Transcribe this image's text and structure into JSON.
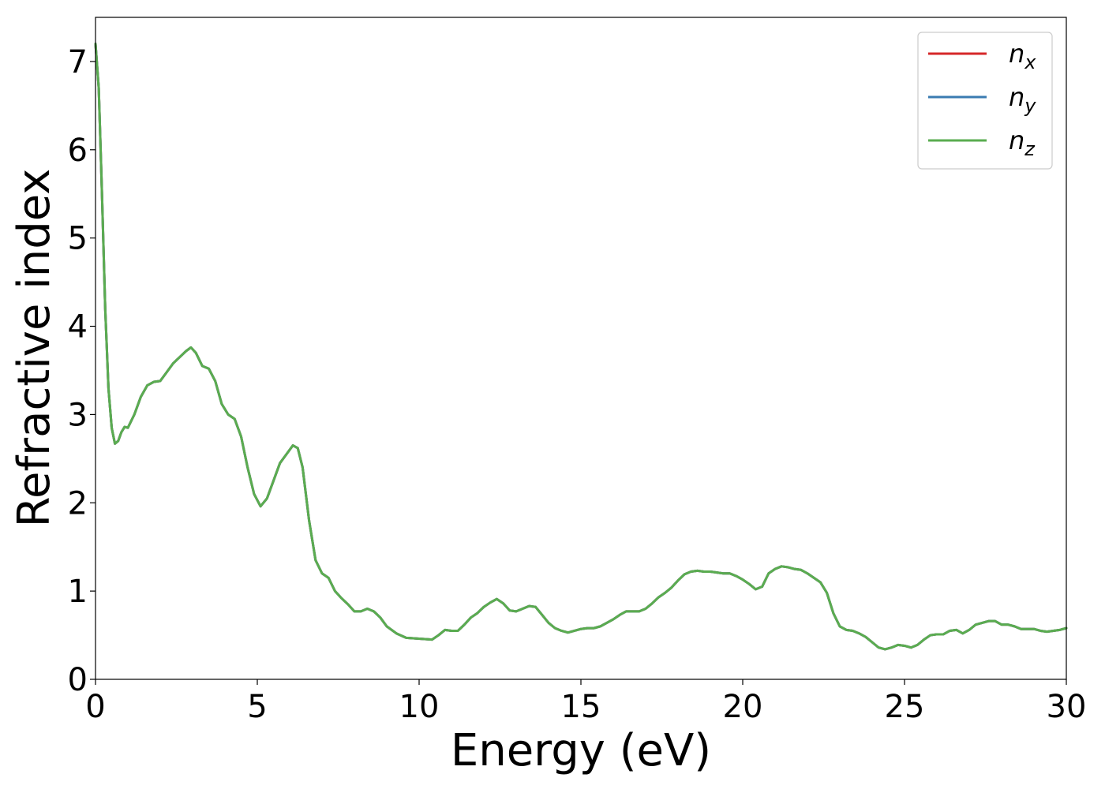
{
  "chart_data": {
    "type": "line",
    "title": "",
    "xlabel": "Energy (eV)",
    "ylabel": "Refractive index",
    "xlim": [
      0,
      30
    ],
    "ylim": [
      0,
      7.5
    ],
    "xticks": [
      0,
      5,
      10,
      15,
      20,
      25,
      30
    ],
    "yticks": [
      0,
      1,
      2,
      3,
      4,
      5,
      6,
      7
    ],
    "grid": false,
    "legend_position": "top-right",
    "series": [
      {
        "name": "n_x",
        "label_base": "n",
        "label_sub": "x",
        "color": "#d62728",
        "x": [
          0,
          0.1,
          0.2,
          0.3,
          0.4,
          0.5,
          0.6,
          0.7,
          0.8,
          0.9,
          1.0,
          1.2,
          1.4,
          1.6,
          1.8,
          2.0,
          2.2,
          2.4,
          2.6,
          2.8,
          2.95,
          3.1,
          3.3,
          3.5,
          3.7,
          3.9,
          4.1,
          4.3,
          4.5,
          4.7,
          4.9,
          5.1,
          5.3,
          5.5,
          5.7,
          5.9,
          6.1,
          6.25,
          6.4,
          6.6,
          6.8,
          7.0,
          7.2,
          7.4,
          7.6,
          7.8,
          8.0,
          8.2,
          8.4,
          8.6,
          8.8,
          9.0,
          9.3,
          9.6,
          10.0,
          10.4,
          10.6,
          10.8,
          11.0,
          11.2,
          11.4,
          11.6,
          11.8,
          12.0,
          12.2,
          12.4,
          12.6,
          12.8,
          13.0,
          13.2,
          13.4,
          13.6,
          13.8,
          14.0,
          14.2,
          14.4,
          14.6,
          14.8,
          15.0,
          15.2,
          15.4,
          15.6,
          15.8,
          16.0,
          16.2,
          16.4,
          16.6,
          16.8,
          17.0,
          17.2,
          17.4,
          17.6,
          17.8,
          18.0,
          18.2,
          18.4,
          18.6,
          18.8,
          19.0,
          19.2,
          19.4,
          19.6,
          19.8,
          20.0,
          20.2,
          20.4,
          20.6,
          20.8,
          21.0,
          21.2,
          21.4,
          21.6,
          21.8,
          22.0,
          22.2,
          22.4,
          22.6,
          22.8,
          23.0,
          23.2,
          23.4,
          23.6,
          23.8,
          24.0,
          24.2,
          24.4,
          24.6,
          24.8,
          25.0,
          25.2,
          25.4,
          25.6,
          25.8,
          26.0,
          26.2,
          26.4,
          26.6,
          26.8,
          27.0,
          27.2,
          27.4,
          27.6,
          27.8,
          28.0,
          28.2,
          28.4,
          28.6,
          28.8,
          29.0,
          29.2,
          29.4,
          29.6,
          29.8,
          30.0
        ],
        "y": [
          7.2,
          6.7,
          5.5,
          4.2,
          3.3,
          2.85,
          2.67,
          2.7,
          2.8,
          2.86,
          2.85,
          3.0,
          3.2,
          3.33,
          3.37,
          3.38,
          3.48,
          3.58,
          3.65,
          3.72,
          3.76,
          3.7,
          3.55,
          3.52,
          3.38,
          3.12,
          3.0,
          2.95,
          2.75,
          2.4,
          2.1,
          1.96,
          2.05,
          2.25,
          2.45,
          2.55,
          2.65,
          2.62,
          2.4,
          1.8,
          1.35,
          1.2,
          1.15,
          1.0,
          0.92,
          0.85,
          0.77,
          0.77,
          0.8,
          0.77,
          0.7,
          0.6,
          0.52,
          0.47,
          0.46,
          0.45,
          0.5,
          0.56,
          0.55,
          0.55,
          0.62,
          0.7,
          0.75,
          0.82,
          0.87,
          0.91,
          0.86,
          0.78,
          0.77,
          0.8,
          0.83,
          0.82,
          0.73,
          0.64,
          0.58,
          0.55,
          0.53,
          0.55,
          0.57,
          0.58,
          0.58,
          0.6,
          0.64,
          0.68,
          0.73,
          0.77,
          0.77,
          0.77,
          0.8,
          0.86,
          0.93,
          0.98,
          1.04,
          1.12,
          1.19,
          1.22,
          1.23,
          1.22,
          1.22,
          1.21,
          1.2,
          1.2,
          1.17,
          1.13,
          1.08,
          1.02,
          1.05,
          1.2,
          1.25,
          1.28,
          1.27,
          1.25,
          1.24,
          1.2,
          1.15,
          1.1,
          0.98,
          0.75,
          0.6,
          0.56,
          0.55,
          0.52,
          0.48,
          0.42,
          0.36,
          0.34,
          0.36,
          0.39,
          0.38,
          0.36,
          0.39,
          0.45,
          0.5,
          0.51,
          0.51,
          0.55,
          0.56,
          0.52,
          0.56,
          0.62,
          0.64,
          0.66,
          0.66,
          0.62,
          0.62,
          0.6,
          0.57,
          0.57,
          0.57,
          0.55,
          0.54,
          0.55,
          0.56,
          0.58
        ]
      },
      {
        "name": "n_y",
        "label_base": "n",
        "label_sub": "y",
        "color": "#3a7bb1",
        "x": [
          0,
          0.1,
          0.2,
          0.3,
          0.4,
          0.5,
          0.6,
          0.7,
          0.8,
          0.9,
          1.0,
          1.2,
          1.4,
          1.6,
          1.8,
          2.0,
          2.2,
          2.4,
          2.6,
          2.8,
          2.95,
          3.1,
          3.3,
          3.5,
          3.7,
          3.9,
          4.1,
          4.3,
          4.5,
          4.7,
          4.9,
          5.1,
          5.3,
          5.5,
          5.7,
          5.9,
          6.1,
          6.25,
          6.4,
          6.6,
          6.8,
          7.0,
          7.2,
          7.4,
          7.6,
          7.8,
          8.0,
          8.2,
          8.4,
          8.6,
          8.8,
          9.0,
          9.3,
          9.6,
          10.0,
          10.4,
          10.6,
          10.8,
          11.0,
          11.2,
          11.4,
          11.6,
          11.8,
          12.0,
          12.2,
          12.4,
          12.6,
          12.8,
          13.0,
          13.2,
          13.4,
          13.6,
          13.8,
          14.0,
          14.2,
          14.4,
          14.6,
          14.8,
          15.0,
          15.2,
          15.4,
          15.6,
          15.8,
          16.0,
          16.2,
          16.4,
          16.6,
          16.8,
          17.0,
          17.2,
          17.4,
          17.6,
          17.8,
          18.0,
          18.2,
          18.4,
          18.6,
          18.8,
          19.0,
          19.2,
          19.4,
          19.6,
          19.8,
          20.0,
          20.2,
          20.4,
          20.6,
          20.8,
          21.0,
          21.2,
          21.4,
          21.6,
          21.8,
          22.0,
          22.2,
          22.4,
          22.6,
          22.8,
          23.0,
          23.2,
          23.4,
          23.6,
          23.8,
          24.0,
          24.2,
          24.4,
          24.6,
          24.8,
          25.0,
          25.2,
          25.4,
          25.6,
          25.8,
          26.0,
          26.2,
          26.4,
          26.6,
          26.8,
          27.0,
          27.2,
          27.4,
          27.6,
          27.8,
          28.0,
          28.2,
          28.4,
          28.6,
          28.8,
          29.0,
          29.2,
          29.4,
          29.6,
          29.8,
          30.0
        ],
        "y": [
          7.2,
          6.7,
          5.5,
          4.2,
          3.3,
          2.85,
          2.67,
          2.7,
          2.8,
          2.86,
          2.85,
          3.0,
          3.2,
          3.33,
          3.37,
          3.38,
          3.48,
          3.58,
          3.65,
          3.72,
          3.76,
          3.7,
          3.55,
          3.52,
          3.38,
          3.12,
          3.0,
          2.95,
          2.75,
          2.4,
          2.1,
          1.96,
          2.05,
          2.25,
          2.45,
          2.55,
          2.65,
          2.62,
          2.4,
          1.8,
          1.35,
          1.2,
          1.15,
          1.0,
          0.92,
          0.85,
          0.77,
          0.77,
          0.8,
          0.77,
          0.7,
          0.6,
          0.52,
          0.47,
          0.46,
          0.45,
          0.5,
          0.56,
          0.55,
          0.55,
          0.62,
          0.7,
          0.75,
          0.82,
          0.87,
          0.91,
          0.86,
          0.78,
          0.77,
          0.8,
          0.83,
          0.82,
          0.73,
          0.64,
          0.58,
          0.55,
          0.53,
          0.55,
          0.57,
          0.58,
          0.58,
          0.6,
          0.64,
          0.68,
          0.73,
          0.77,
          0.77,
          0.77,
          0.8,
          0.86,
          0.93,
          0.98,
          1.04,
          1.12,
          1.19,
          1.22,
          1.23,
          1.22,
          1.22,
          1.21,
          1.2,
          1.2,
          1.17,
          1.13,
          1.08,
          1.02,
          1.05,
          1.2,
          1.25,
          1.28,
          1.27,
          1.25,
          1.24,
          1.2,
          1.15,
          1.1,
          0.98,
          0.75,
          0.6,
          0.56,
          0.55,
          0.52,
          0.48,
          0.42,
          0.36,
          0.34,
          0.36,
          0.39,
          0.38,
          0.36,
          0.39,
          0.45,
          0.5,
          0.51,
          0.51,
          0.55,
          0.56,
          0.52,
          0.56,
          0.62,
          0.64,
          0.66,
          0.66,
          0.62,
          0.62,
          0.6,
          0.57,
          0.57,
          0.57,
          0.55,
          0.54,
          0.55,
          0.56,
          0.58
        ]
      },
      {
        "name": "n_z",
        "label_base": "n",
        "label_sub": "z",
        "color": "#5aac50",
        "x": [
          0,
          0.1,
          0.2,
          0.3,
          0.4,
          0.5,
          0.6,
          0.7,
          0.8,
          0.9,
          1.0,
          1.2,
          1.4,
          1.6,
          1.8,
          2.0,
          2.2,
          2.4,
          2.6,
          2.8,
          2.95,
          3.1,
          3.3,
          3.5,
          3.7,
          3.9,
          4.1,
          4.3,
          4.5,
          4.7,
          4.9,
          5.1,
          5.3,
          5.5,
          5.7,
          5.9,
          6.1,
          6.25,
          6.4,
          6.6,
          6.8,
          7.0,
          7.2,
          7.4,
          7.6,
          7.8,
          8.0,
          8.2,
          8.4,
          8.6,
          8.8,
          9.0,
          9.3,
          9.6,
          10.0,
          10.4,
          10.6,
          10.8,
          11.0,
          11.2,
          11.4,
          11.6,
          11.8,
          12.0,
          12.2,
          12.4,
          12.6,
          12.8,
          13.0,
          13.2,
          13.4,
          13.6,
          13.8,
          14.0,
          14.2,
          14.4,
          14.6,
          14.8,
          15.0,
          15.2,
          15.4,
          15.6,
          15.8,
          16.0,
          16.2,
          16.4,
          16.6,
          16.8,
          17.0,
          17.2,
          17.4,
          17.6,
          17.8,
          18.0,
          18.2,
          18.4,
          18.6,
          18.8,
          19.0,
          19.2,
          19.4,
          19.6,
          19.8,
          20.0,
          20.2,
          20.4,
          20.6,
          20.8,
          21.0,
          21.2,
          21.4,
          21.6,
          21.8,
          22.0,
          22.2,
          22.4,
          22.6,
          22.8,
          23.0,
          23.2,
          23.4,
          23.6,
          23.8,
          24.0,
          24.2,
          24.4,
          24.6,
          24.8,
          25.0,
          25.2,
          25.4,
          25.6,
          25.8,
          26.0,
          26.2,
          26.4,
          26.6,
          26.8,
          27.0,
          27.2,
          27.4,
          27.6,
          27.8,
          28.0,
          28.2,
          28.4,
          28.6,
          28.8,
          29.0,
          29.2,
          29.4,
          29.6,
          29.8,
          30.0
        ],
        "y": [
          7.2,
          6.7,
          5.5,
          4.2,
          3.3,
          2.85,
          2.67,
          2.7,
          2.8,
          2.86,
          2.85,
          3.0,
          3.2,
          3.33,
          3.37,
          3.38,
          3.48,
          3.58,
          3.65,
          3.72,
          3.76,
          3.7,
          3.55,
          3.52,
          3.38,
          3.12,
          3.0,
          2.95,
          2.75,
          2.4,
          2.1,
          1.96,
          2.05,
          2.25,
          2.45,
          2.55,
          2.65,
          2.62,
          2.4,
          1.8,
          1.35,
          1.2,
          1.15,
          1.0,
          0.92,
          0.85,
          0.77,
          0.77,
          0.8,
          0.77,
          0.7,
          0.6,
          0.52,
          0.47,
          0.46,
          0.45,
          0.5,
          0.56,
          0.55,
          0.55,
          0.62,
          0.7,
          0.75,
          0.82,
          0.87,
          0.91,
          0.86,
          0.78,
          0.77,
          0.8,
          0.83,
          0.82,
          0.73,
          0.64,
          0.58,
          0.55,
          0.53,
          0.55,
          0.57,
          0.58,
          0.58,
          0.6,
          0.64,
          0.68,
          0.73,
          0.77,
          0.77,
          0.77,
          0.8,
          0.86,
          0.93,
          0.98,
          1.04,
          1.12,
          1.19,
          1.22,
          1.23,
          1.22,
          1.22,
          1.21,
          1.2,
          1.2,
          1.17,
          1.13,
          1.08,
          1.02,
          1.05,
          1.2,
          1.25,
          1.28,
          1.27,
          1.25,
          1.24,
          1.2,
          1.15,
          1.1,
          0.98,
          0.75,
          0.6,
          0.56,
          0.55,
          0.52,
          0.48,
          0.42,
          0.36,
          0.34,
          0.36,
          0.39,
          0.38,
          0.36,
          0.39,
          0.45,
          0.5,
          0.51,
          0.51,
          0.55,
          0.56,
          0.52,
          0.56,
          0.62,
          0.64,
          0.66,
          0.66,
          0.62,
          0.62,
          0.6,
          0.57,
          0.57,
          0.57,
          0.55,
          0.54,
          0.55,
          0.56,
          0.58
        ]
      }
    ]
  }
}
